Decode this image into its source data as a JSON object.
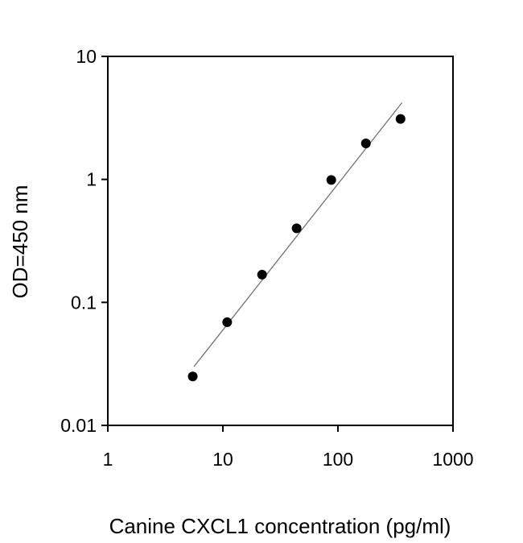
{
  "chart_data": {
    "type": "scatter",
    "title": "",
    "xlabel": "Canine CXCL1 concentration (pg/ml)",
    "ylabel": "OD=450 nm",
    "xscale": "log",
    "yscale": "log",
    "xlim": [
      1,
      1000
    ],
    "ylim": [
      0.01,
      10
    ],
    "xticks": [
      "1",
      "10",
      "100",
      "1000"
    ],
    "yticks": [
      "0.01",
      "0.1",
      "1",
      "10"
    ],
    "grid": false,
    "legend": null,
    "series": [
      {
        "name": "Standard",
        "marker": "filled-circle",
        "color": "#000000",
        "x": [
          5.47,
          10.9,
          21.9,
          43.75,
          87.5,
          175,
          350
        ],
        "y": [
          0.025,
          0.069,
          0.168,
          0.4,
          0.99,
          1.96,
          3.1
        ]
      },
      {
        "name": "Fit line",
        "style": "line",
        "color": "#707070",
        "x": [
          5.6,
          360
        ],
        "y": [
          0.03,
          4.2
        ]
      }
    ]
  }
}
